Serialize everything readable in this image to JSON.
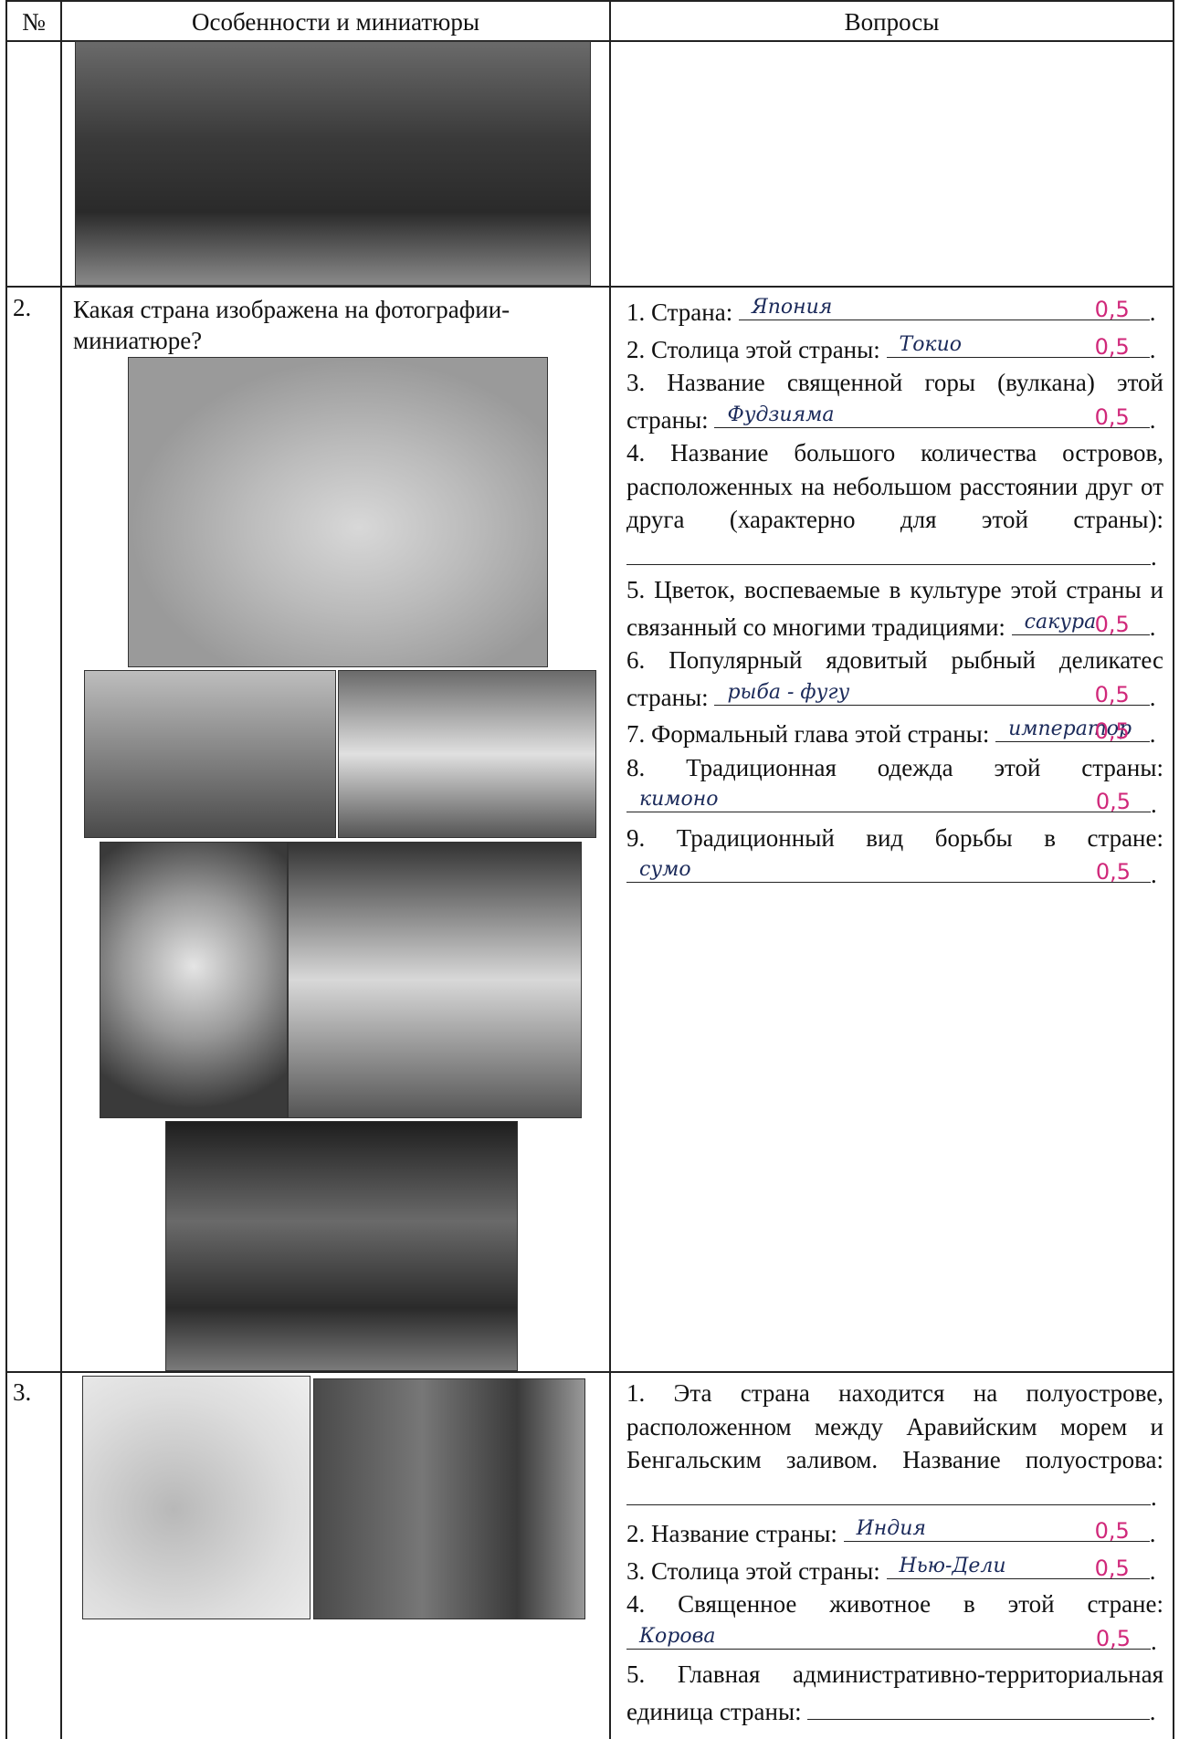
{
  "table": {
    "headers": [
      "№",
      "Особенности и миниатюры",
      "Вопросы"
    ],
    "rows": [
      {
        "number": "2.",
        "description": "Какая страна изображена на фотографии-миниатюре?",
        "questions": [
          {
            "text": "1. Страна:",
            "answer": "Япония",
            "score": "0,5",
            "ending": "."
          },
          {
            "text": "2. Столица этой страны:",
            "answer": "Токио",
            "score": "0,5",
            "ending": "."
          },
          {
            "text": "3. Название священной горы (вулкана) этой страны:",
            "answer": "Фудзияма",
            "score": "0,5",
            "ending": "."
          },
          {
            "text": "4. Название большого количества островов, расположенных на небольшом расстоянии друг от друга (характерно для этой страны):",
            "ending": "."
          },
          {
            "text": "5. Цветок, воспеваемые в культуре этой страны и связанный со многими традициями:",
            "answer": "сакура",
            "score": "0,5",
            "ending": "."
          },
          {
            "text": "6. Популярный ядовитый рыбный деликатес страны:",
            "answer": "рыба - фугу",
            "score": "0,5",
            "ending": "."
          },
          {
            "text": "7. Формальный глава этой страны:",
            "answer": "император",
            "score": "0,5",
            "ending": "."
          },
          {
            "text": "8. Традиционная одежда этой страны:",
            "answer": "кимоно",
            "score": "0,5",
            "ending": "."
          },
          {
            "text": "9. Традиционный вид борьбы в стране:",
            "answer": "сумо",
            "score": "0,5",
            "ending": "."
          }
        ]
      },
      {
        "number": "3.",
        "questions": [
          {
            "text": "1. Эта страна находится на полуострове, расположенном между Аравийским морем и Бенгальским заливом. Название полуострова:",
            "ending": "."
          },
          {
            "text": "2. Название страны:",
            "answer": "Индия",
            "score": "0,5",
            "ending": "."
          },
          {
            "text": "3. Столица этой страны:",
            "answer": "Нью-Дели",
            "score": "0,5",
            "ending": "."
          },
          {
            "text": "4. Священное животное в этой стране:",
            "answer": "Корова",
            "score": "0,5",
            "ending": "."
          },
          {
            "text": "5. Главная административно-территориальная единица страны:",
            "ending": "."
          }
        ]
      }
    ]
  }
}
